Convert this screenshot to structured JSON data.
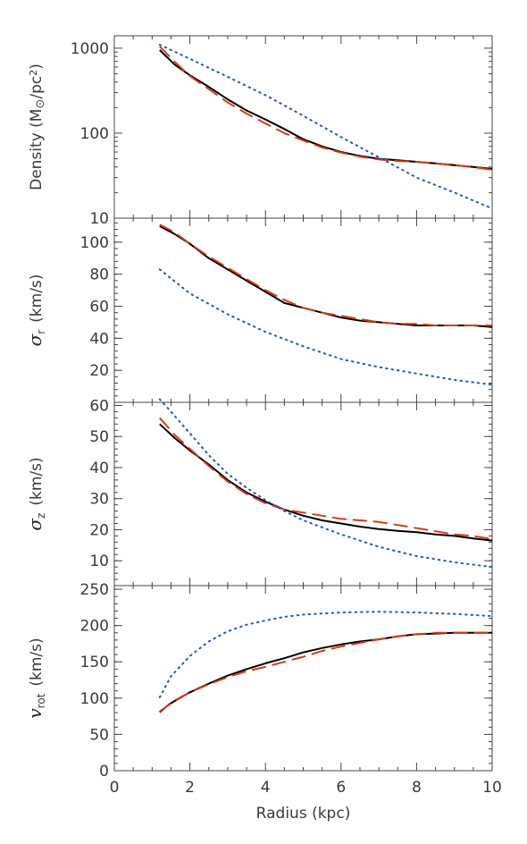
{
  "chart_data": [
    {
      "type": "line",
      "ylabel": "Density (M☉/pc²)",
      "ylabel_parts": {
        "main": "Density (M",
        "sym": "⊙",
        "mid": "/pc",
        "sup": "2",
        "end": ")"
      },
      "yscale": "log",
      "ylim": [
        10,
        1400
      ],
      "yticks": [
        10,
        100,
        1000
      ],
      "yticklabels": [
        "10",
        "100",
        "1000"
      ],
      "series": [
        {
          "style": "solid",
          "color": "#000000",
          "x": [
            1.2,
            1.6,
            2.0,
            2.5,
            3.0,
            3.5,
            4.0,
            4.5,
            5.0,
            5.5,
            6.0,
            6.5,
            7.0,
            7.5,
            8.0,
            8.5,
            9.0,
            9.5,
            10.0
          ],
          "y": [
            950,
            640,
            480,
            350,
            250,
            185,
            145,
            112,
            85,
            70,
            60,
            54,
            50,
            48,
            46,
            44,
            42,
            40,
            38
          ]
        },
        {
          "style": "dashed",
          "color": "#d63a12",
          "x": [
            1.2,
            1.6,
            2.0,
            2.5,
            3.0,
            3.5,
            4.0,
            4.5,
            5.0,
            5.5,
            6.0,
            6.5,
            7.0,
            7.5,
            8.0,
            8.5,
            9.0,
            9.5,
            10.0
          ],
          "y": [
            1050,
            690,
            470,
            330,
            230,
            170,
            130,
            100,
            82,
            68,
            59,
            53,
            49,
            47,
            46,
            44,
            42,
            40,
            37
          ]
        },
        {
          "style": "dotted",
          "color": "#2750d8",
          "x": [
            1.2,
            2.0,
            3.0,
            4.0,
            5.0,
            6.0,
            7.0,
            8.0,
            9.0,
            10.0
          ],
          "y": [
            1100,
            750,
            460,
            280,
            160,
            90,
            52,
            30,
            20,
            13
          ]
        }
      ]
    },
    {
      "type": "line",
      "ylabel_sym": "σ",
      "ylabel_sub": "r",
      "ylabel_unit": "(km/s)",
      "ylim": [
        0,
        115
      ],
      "yticks": [
        20,
        40,
        60,
        80,
        100
      ],
      "yticklabels": [
        "20",
        "40",
        "60",
        "80",
        "100"
      ],
      "series": [
        {
          "style": "solid",
          "color": "#000000",
          "x": [
            1.2,
            1.6,
            2.0,
            2.5,
            3.0,
            3.5,
            4.0,
            4.5,
            5.0,
            5.5,
            6.0,
            6.5,
            7.0,
            7.5,
            8.0,
            8.5,
            9.0,
            9.5,
            10.0
          ],
          "y": [
            110,
            105,
            99,
            90,
            83,
            76,
            69,
            62,
            59,
            56,
            53,
            51,
            50,
            49,
            48,
            48,
            48,
            48,
            47
          ]
        },
        {
          "style": "dashed",
          "color": "#d63a12",
          "x": [
            1.2,
            1.6,
            2.0,
            2.5,
            3.0,
            3.5,
            4.0,
            4.5,
            5.0,
            5.5,
            6.0,
            6.5,
            7.0,
            7.5,
            8.0,
            8.5,
            9.0,
            9.5,
            10.0
          ],
          "y": [
            111,
            106,
            99,
            91,
            84,
            77,
            70,
            64,
            59,
            56,
            54,
            52,
            50,
            49,
            49,
            48,
            48,
            48,
            48
          ]
        },
        {
          "style": "dotted",
          "color": "#2750d8",
          "x": [
            1.2,
            2.0,
            3.0,
            4.0,
            5.0,
            6.0,
            7.0,
            8.0,
            9.0,
            10.0
          ],
          "y": [
            83,
            68,
            55,
            44,
            35,
            27,
            22,
            18,
            14,
            11
          ]
        }
      ]
    },
    {
      "type": "line",
      "ylabel_sym": "σ",
      "ylabel_sub": "z",
      "ylabel_unit": "(km/s)",
      "ylim": [
        2,
        61
      ],
      "yticks": [
        10,
        20,
        30,
        40,
        50,
        60
      ],
      "yticklabels": [
        "10",
        "20",
        "30",
        "40",
        "50",
        "60"
      ],
      "series": [
        {
          "style": "solid",
          "color": "#000000",
          "x": [
            1.2,
            1.6,
            2.0,
            2.5,
            3.0,
            3.5,
            4.0,
            4.5,
            5.0,
            5.5,
            6.0,
            6.5,
            7.0,
            7.5,
            8.0,
            8.5,
            9.0,
            9.5,
            10.0
          ],
          "y": [
            54,
            49.5,
            45.5,
            41,
            36,
            32,
            29,
            26.5,
            24.5,
            23,
            22,
            21,
            20.2,
            19.6,
            19.2,
            18.5,
            18,
            17.2,
            16.5
          ]
        },
        {
          "style": "dashed",
          "color": "#d63a12",
          "x": [
            1.2,
            1.6,
            2.0,
            2.5,
            3.0,
            3.5,
            4.0,
            4.5,
            5.0,
            5.5,
            6.0,
            6.5,
            7.0,
            7.5,
            8.0,
            8.5,
            9.0,
            9.5,
            10.0
          ],
          "y": [
            56,
            50.5,
            46,
            40.5,
            35.5,
            31.5,
            28.5,
            26.5,
            25.5,
            24.5,
            23.5,
            23,
            22.5,
            21.5,
            20.5,
            19.5,
            18.5,
            18,
            17
          ]
        },
        {
          "style": "dotted",
          "color": "#2750d8",
          "x": [
            1.2,
            1.5,
            2.0,
            2.5,
            3.0,
            3.5,
            4.0,
            4.5,
            5.0,
            6.0,
            7.0,
            8.0,
            9.0,
            10.0
          ],
          "y": [
            62,
            58,
            51,
            44,
            38,
            33.5,
            29.5,
            26,
            23,
            18.5,
            14.5,
            11.5,
            9.5,
            8
          ]
        }
      ]
    },
    {
      "type": "line",
      "ylabel_sym": "v",
      "ylabel_sub": "rot",
      "ylabel_unit": "(km/s)",
      "ylim": [
        0,
        255
      ],
      "yticks": [
        0,
        50,
        100,
        150,
        200,
        250
      ],
      "yticklabels": [
        "0",
        "50",
        "100",
        "150",
        "200",
        "250"
      ],
      "xlabel": "Radius (kpc)",
      "xlim": [
        0,
        10
      ],
      "xticks": [
        0,
        2,
        4,
        6,
        8,
        10
      ],
      "xticklabels": [
        "0",
        "2",
        "4",
        "6",
        "8",
        "10"
      ],
      "series": [
        {
          "style": "solid",
          "color": "#000000",
          "x": [
            1.2,
            1.5,
            2.0,
            2.5,
            3.0,
            3.5,
            4.0,
            4.5,
            5.0,
            5.5,
            6.0,
            6.5,
            7.0,
            7.5,
            8.0,
            8.5,
            9.0,
            9.5,
            10.0
          ],
          "y": [
            81,
            93,
            108,
            120,
            131,
            140,
            148,
            155,
            163,
            169,
            174,
            178,
            181,
            185,
            188,
            189,
            190,
            190,
            190
          ]
        },
        {
          "style": "dashed",
          "color": "#d63a12",
          "x": [
            1.2,
            1.5,
            2.0,
            2.5,
            3.0,
            3.5,
            4.0,
            4.5,
            5.0,
            5.5,
            6.0,
            6.5,
            7.0,
            7.5,
            8.0,
            8.5,
            9.0,
            9.5,
            10.0
          ],
          "y": [
            80,
            94,
            108,
            119,
            129,
            137,
            143,
            150,
            157,
            165,
            171,
            176,
            181,
            185,
            188,
            190,
            190,
            190,
            190
          ]
        },
        {
          "style": "dotted",
          "color": "#2750d8",
          "x": [
            1.2,
            1.5,
            2.0,
            2.5,
            3.0,
            3.5,
            4.0,
            4.5,
            5.0,
            6.0,
            7.0,
            8.0,
            9.0,
            10.0
          ],
          "y": [
            101,
            130,
            158,
            178,
            192,
            201,
            207,
            212,
            215,
            218,
            219,
            218,
            216,
            213
          ]
        }
      ]
    }
  ]
}
